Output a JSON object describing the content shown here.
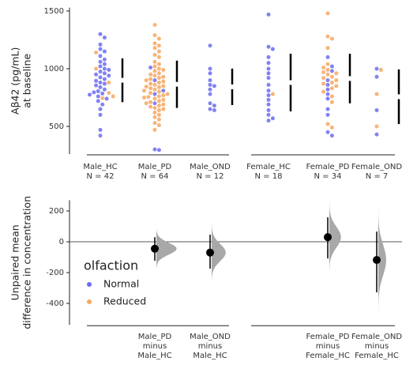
{
  "chart_data": [
    {
      "type": "swarm",
      "ylabel": [
        "Aβ42 (pg/mL)",
        "at baseline"
      ],
      "categories": [
        "Male_HC",
        "Male_PD",
        "Male_OND",
        "Female_HC",
        "Female_PD",
        "Female_OND"
      ],
      "n_labels": [
        "N = 42",
        "N = 64",
        "N = 12",
        "N = 18",
        "N = 34",
        "N = 7"
      ],
      "ylim": [
        260,
        1530
      ],
      "yticks": [
        500,
        1000,
        1500
      ],
      "series": [
        {
          "name": "Normal",
          "color": "#6c6cf2",
          "values": [
            [
              1300,
              1270,
              1210,
              1170,
              1150,
              1110,
              1080,
              1060,
              1040,
              1020,
              1000,
              990,
              975,
              960,
              950,
              940,
              925,
              910,
              895,
              880,
              870,
              855,
              840,
              820,
              805,
              795,
              785,
              775,
              760,
              740,
              720,
              690,
              650,
              600,
              470,
              420
            ],
            [
              1010,
              900,
              810,
              780,
              700,
              300,
              295
            ],
            [
              1200,
              1000,
              960,
              900,
              860,
              850,
              820,
              780,
              700,
              680,
              650,
              640
            ],
            [
              1470,
              1190,
              1170,
              1100,
              1050,
              1000,
              960,
              920,
              860,
              810,
              770,
              730,
              690,
              640,
              600,
              570,
              550
            ],
            [
              1100,
              1020,
              980,
              900,
              860,
              820,
              780,
              740,
              650,
              600,
              450,
              420
            ],
            [
              1000,
              930,
              640,
              430
            ]
          ]
        },
        {
          "name": "Reduced",
          "color": "#f7a760",
          "values": [
            [
              1140,
              1000,
              880,
              790,
              760,
              745
            ],
            [
              1380,
              1290,
              1260,
              1220,
              1200,
              1180,
              1150,
              1120,
              1100,
              1060,
              1040,
              1020,
              1000,
              990,
              980,
              960,
              950,
              940,
              930,
              920,
              910,
              900,
              890,
              880,
              870,
              860,
              850,
              845,
              840,
              830,
              820,
              810,
              800,
              790,
              780,
              770,
              760,
              750,
              740,
              730,
              720,
              710,
              700,
              690,
              680,
              670,
              660,
              650,
              640,
              620,
              600,
              580,
              560,
              530,
              510,
              470,
              755
            ],
            [],
            [
              780
            ],
            [
              1480,
              1280,
              1260,
              1180,
              1040,
              1010,
              990,
              970,
              960,
              950,
              930,
              920,
              900,
              880,
              870,
              850,
              830,
              800,
              760,
              710,
              520,
              490
            ],
            [
              990,
              780,
              500
            ]
          ]
        }
      ],
      "mean": [
        900,
        865,
        843,
        880,
        915,
        757
      ],
      "sd": [
        190,
        205,
        158,
        250,
        215,
        237
      ]
    },
    {
      "type": "effect",
      "ylabel": [
        "Unpaired mean",
        "difference in concentration"
      ],
      "categories": [
        null,
        [
          "Male_PD",
          "minus",
          "Male_HC"
        ],
        [
          "Male_OND",
          "minus",
          "Male_HC"
        ],
        null,
        [
          "Female_PD",
          "minus",
          "Female_HC"
        ],
        [
          "Female_OND",
          "minus",
          "Female_HC"
        ]
      ],
      "values": [
        null,
        -45,
        -70,
        null,
        30,
        -118
      ],
      "ci_low": [
        null,
        -123,
        -174,
        null,
        -108,
        -328
      ],
      "ci_high": [
        null,
        30,
        46,
        null,
        159,
        66
      ],
      "ylim": [
        -540,
        270
      ],
      "yticks": [
        -400,
        -200,
        0,
        200
      ],
      "legend": {
        "title": "olfaction",
        "position": "left"
      }
    }
  ]
}
